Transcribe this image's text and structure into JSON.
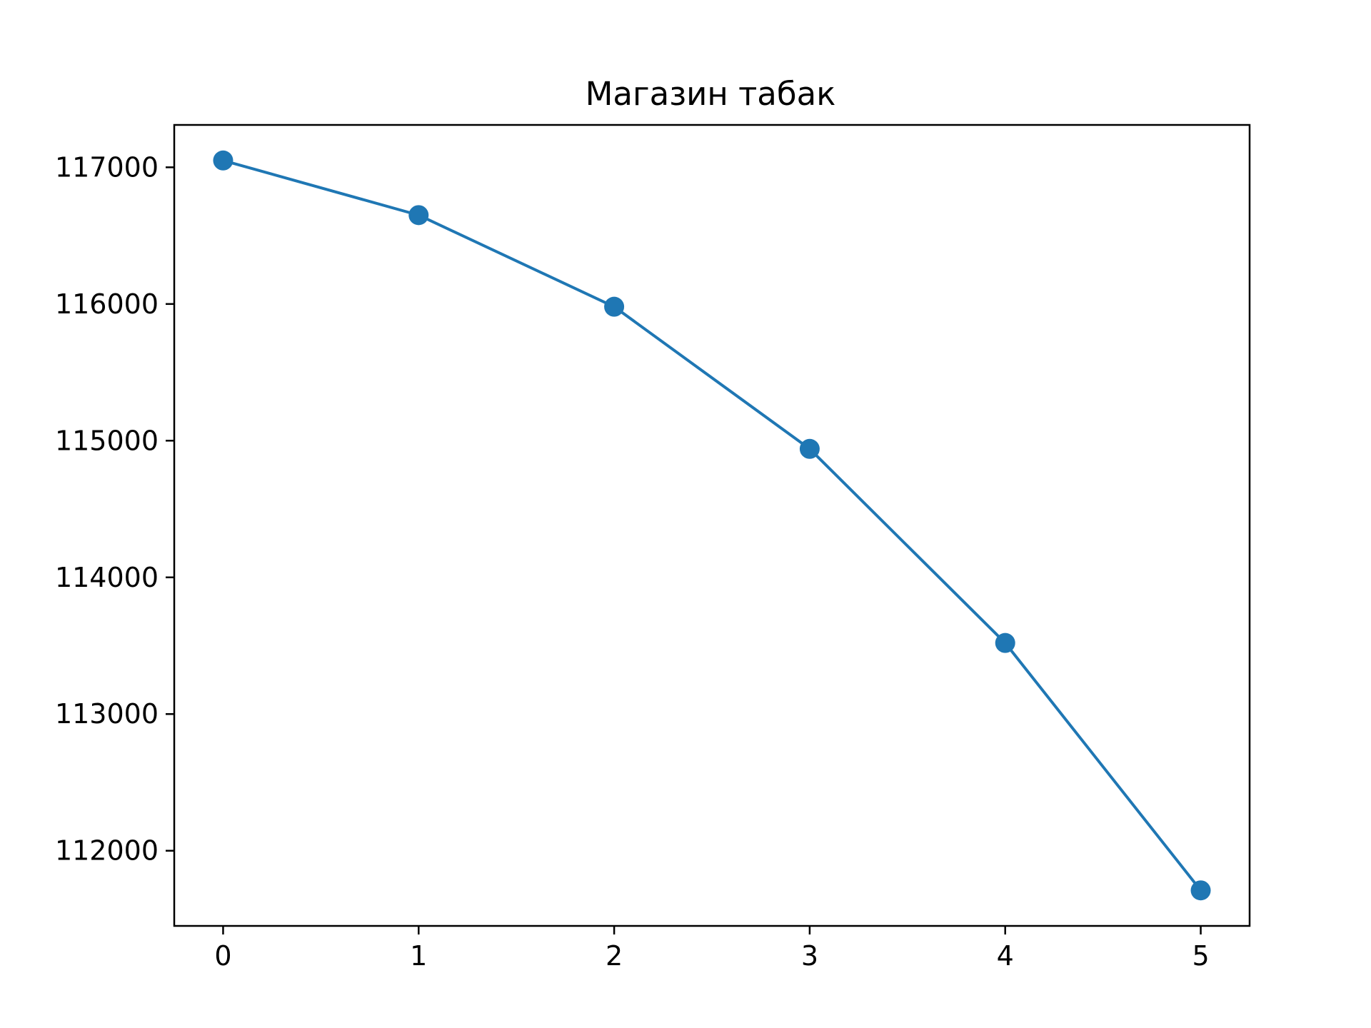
{
  "chart_data": {
    "type": "line",
    "title": "Магазин табак",
    "xlabel": "",
    "ylabel": "",
    "x": [
      0,
      1,
      2,
      3,
      4,
      5
    ],
    "series": [
      {
        "values": [
          117050,
          116650,
          115980,
          114940,
          113520,
          111710
        ],
        "color": "#1f77b4",
        "marker": "circle"
      }
    ],
    "xlim": [
      -0.25,
      5.25
    ],
    "ylim": [
      111450,
      117310
    ],
    "xticks": [
      0,
      1,
      2,
      3,
      4,
      5
    ],
    "xtick_labels": [
      "0",
      "1",
      "2",
      "3",
      "4",
      "5"
    ],
    "yticks": [
      112000,
      113000,
      114000,
      115000,
      116000,
      117000
    ],
    "ytick_labels": [
      "112000",
      "113000",
      "114000",
      "115000",
      "116000",
      "117000"
    ],
    "grid": false,
    "legend": "none"
  }
}
